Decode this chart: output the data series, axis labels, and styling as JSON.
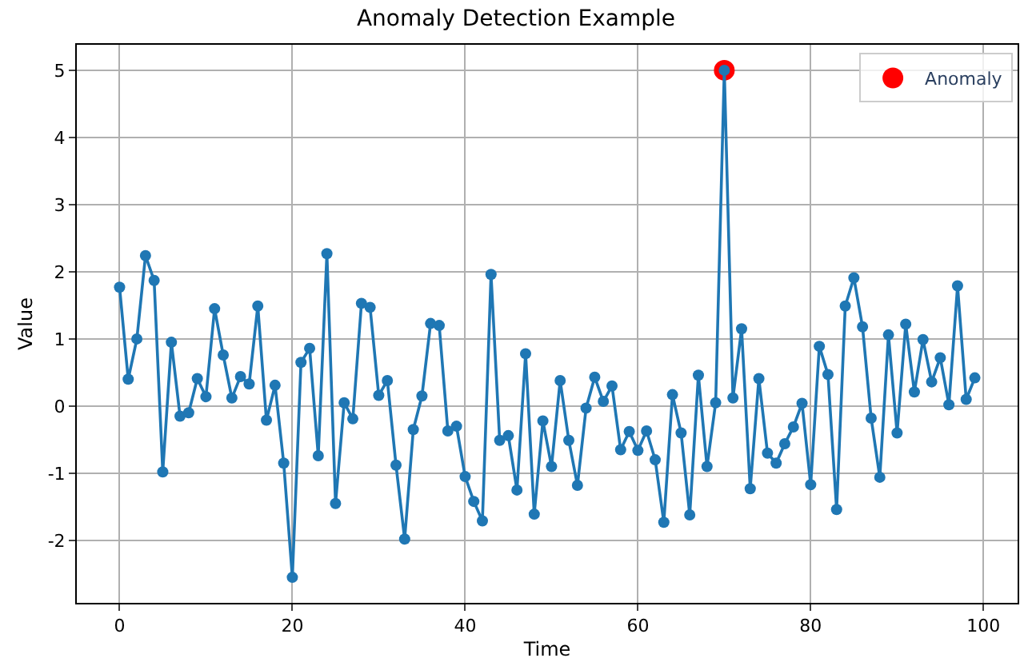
{
  "chart_data": {
    "type": "line",
    "title": "Anomaly Detection Example",
    "xlabel": "Time",
    "ylabel": "Value",
    "xlim": [
      -4.95,
      103.95
    ],
    "xticks": [
      0,
      20,
      40,
      60,
      80,
      100
    ],
    "ylim": [
      -2.93,
      5.38
    ],
    "yticks": [
      -2,
      -1,
      0,
      1,
      2,
      3,
      4,
      5
    ],
    "grid": true,
    "legend": "top right",
    "marker": "circle",
    "line_style": "solid",
    "series": [
      {
        "type": "scatter",
        "name": "Anomaly",
        "color": "#ff0000",
        "x": [
          70
        ],
        "values": [
          5.0
        ]
      },
      {
        "color": "#1f77b4",
        "x": [
          0,
          1,
          2,
          3,
          4,
          5,
          6,
          7,
          8,
          9,
          10,
          11,
          12,
          13,
          14,
          15,
          16,
          17,
          18,
          19,
          20,
          21,
          22,
          23,
          24,
          25,
          26,
          27,
          28,
          29,
          30,
          31,
          32,
          33,
          34,
          35,
          36,
          37,
          38,
          39,
          40,
          41,
          42,
          43,
          44,
          45,
          46,
          47,
          48,
          49,
          50,
          51,
          52,
          53,
          54,
          55,
          56,
          57,
          58,
          59,
          60,
          61,
          62,
          63,
          64,
          65,
          66,
          67,
          68,
          69,
          70,
          71,
          72,
          73,
          74,
          75,
          76,
          77,
          78,
          79,
          80,
          81,
          82,
          83,
          84,
          85,
          86,
          87,
          88,
          89,
          90,
          91,
          92,
          93,
          94,
          95,
          96,
          97,
          98,
          99
        ],
        "values": [
          1.77,
          0.4,
          1.0,
          2.24,
          1.87,
          -0.98,
          0.95,
          -0.15,
          -0.1,
          0.41,
          0.14,
          1.45,
          0.76,
          0.12,
          0.44,
          0.33,
          1.49,
          -0.21,
          0.31,
          -0.85,
          -2.55,
          0.65,
          0.86,
          -0.74,
          2.27,
          -1.45,
          0.05,
          -0.19,
          1.53,
          1.47,
          0.16,
          0.38,
          -0.88,
          -1.98,
          -0.35,
          0.15,
          1.23,
          1.2,
          -0.37,
          -0.3,
          -1.05,
          -1.42,
          -1.71,
          1.96,
          -0.51,
          -0.44,
          -1.25,
          0.78,
          -1.61,
          -0.22,
          -0.9,
          0.38,
          -0.51,
          -1.18,
          -0.03,
          0.43,
          0.07,
          0.3,
          -0.65,
          -0.38,
          -0.66,
          -0.37,
          -0.8,
          -1.73,
          0.17,
          -0.4,
          -1.62,
          0.46,
          -0.9,
          0.05,
          5.0,
          0.12,
          1.15,
          -1.23,
          0.41,
          -0.7,
          -0.85,
          -0.56,
          -0.31,
          0.04,
          -1.17,
          0.89,
          0.47,
          -1.54,
          1.49,
          1.91,
          1.18,
          -0.18,
          -1.06,
          1.06,
          -0.4,
          1.22,
          0.21,
          0.99,
          0.36,
          0.72,
          0.02,
          1.79,
          0.1,
          0.42
        ]
      }
    ]
  }
}
